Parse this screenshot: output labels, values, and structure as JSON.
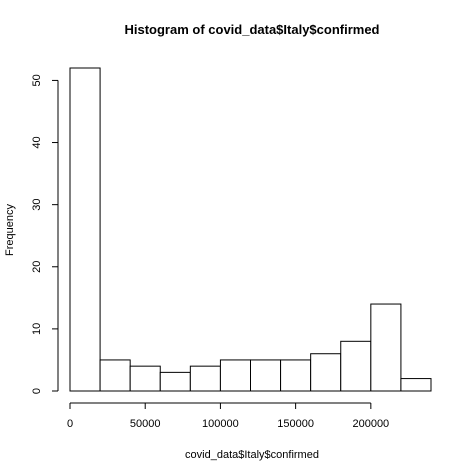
{
  "chart_data": {
    "type": "bar",
    "title": "Histogram of covid_data$Italy$confirmed",
    "xlabel": "covid_data$Italy$confirmed",
    "ylabel": "Frequency",
    "bin_edges": [
      0,
      20000,
      40000,
      60000,
      80000,
      100000,
      120000,
      140000,
      160000,
      180000,
      200000,
      220000,
      240000
    ],
    "values": [
      52,
      5,
      4,
      3,
      4,
      5,
      5,
      5,
      6,
      8,
      14,
      2
    ],
    "x_ticks": [
      0,
      50000,
      100000,
      150000,
      200000
    ],
    "x_tick_labels": [
      "0",
      "50000",
      "100000",
      "150000",
      "200000"
    ],
    "y_ticks": [
      0,
      10,
      20,
      30,
      40,
      50
    ],
    "y_tick_labels": [
      "0",
      "10",
      "20",
      "30",
      "40",
      "50"
    ],
    "xlim": [
      0,
      240000
    ],
    "ylim": [
      0,
      52
    ],
    "grid": false,
    "bar_fill": "#ffffff",
    "bar_stroke": "#000000"
  }
}
